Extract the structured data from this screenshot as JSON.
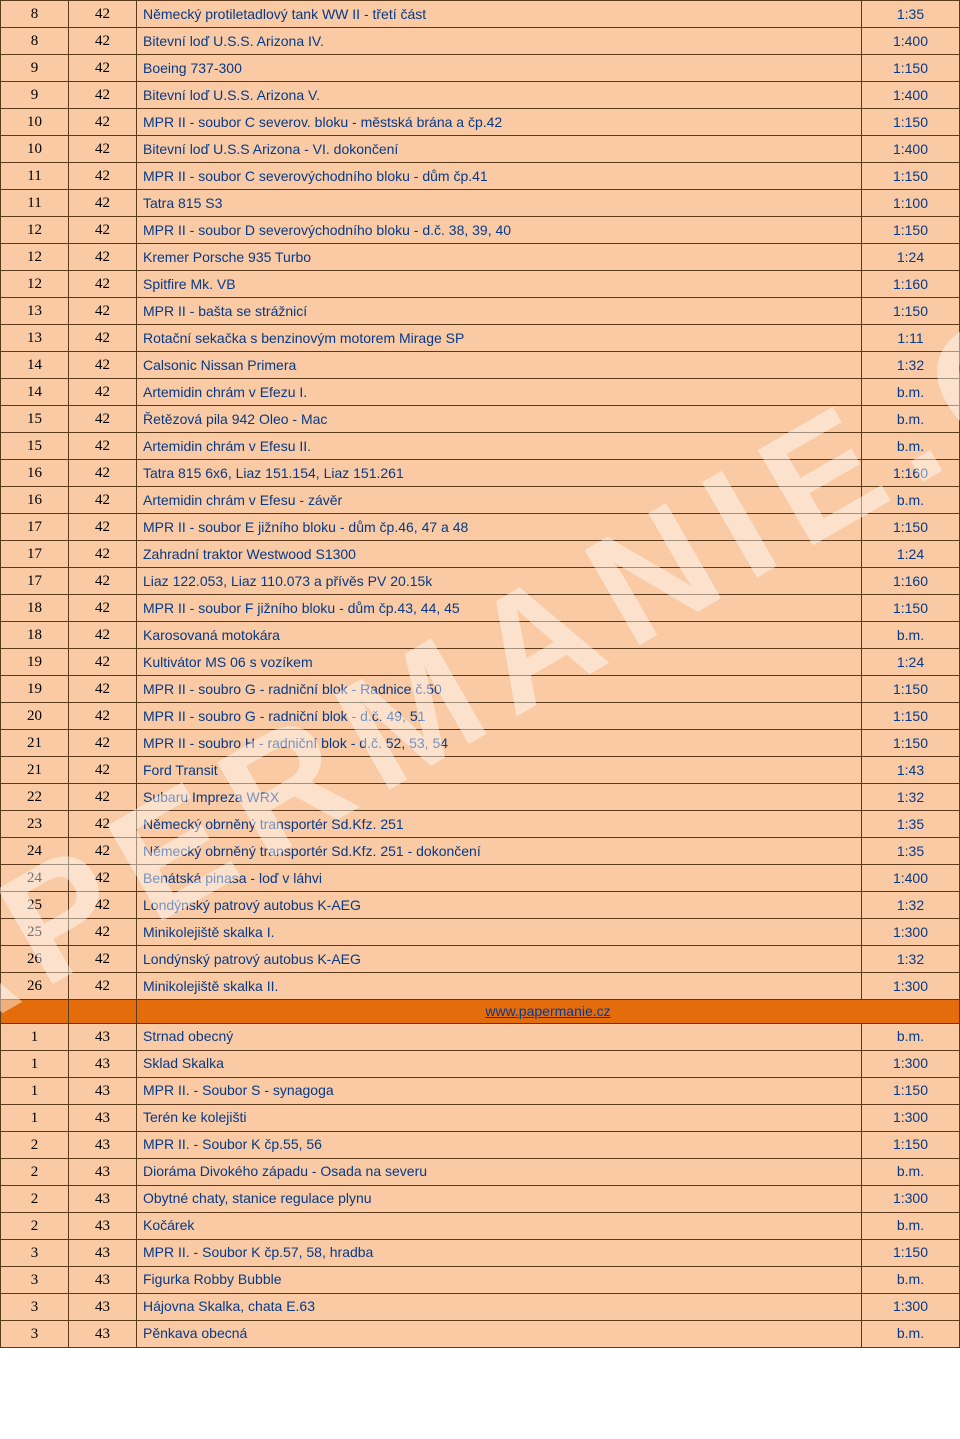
{
  "colors": {
    "row_bg": "#f9caa4",
    "sep_bg": "#e46c0a",
    "border": "#5a3a1a",
    "text_link": "#063a88",
    "col_ab": "#000000"
  },
  "watermark": "PAPERMANIE.CZ",
  "rows": [
    {
      "a": "8",
      "b": "42",
      "c": "Německý protiletadlový tank WW II - třetí část",
      "d": "1:35"
    },
    {
      "a": "8",
      "b": "42",
      "c": "Bitevní loď U.S.S. Arizona IV.",
      "d": "1:400"
    },
    {
      "a": "9",
      "b": "42",
      "c": "Boeing 737-300",
      "d": "1:150"
    },
    {
      "a": "9",
      "b": "42",
      "c": "Bitevní loď U.S.S. Arizona V.",
      "d": "1:400"
    },
    {
      "a": "10",
      "b": "42",
      "c": "MPR II - soubor C severov. bloku - městská brána a čp.42",
      "d": "1:150"
    },
    {
      "a": "10",
      "b": "42",
      "c": "Bitevní loď U.S.S Arizona - VI. dokončení",
      "d": "1:400"
    },
    {
      "a": "11",
      "b": "42",
      "c": "MPR II - soubor C severovýchodního bloku - dům čp.41",
      "d": "1:150"
    },
    {
      "a": "11",
      "b": "42",
      "c": "Tatra 815 S3",
      "d": "1:100"
    },
    {
      "a": "12",
      "b": "42",
      "c": "MPR II - soubor D severovýchodního bloku - d.č. 38, 39, 40",
      "d": "1:150"
    },
    {
      "a": "12",
      "b": "42",
      "c": "Kremer Porsche 935 Turbo",
      "d": "1:24"
    },
    {
      "a": "12",
      "b": "42",
      "c": "Spitfire Mk. VB",
      "d": "1:160"
    },
    {
      "a": "13",
      "b": "42",
      "c": "MPR II - bašta se strážnicí",
      "d": "1:150"
    },
    {
      "a": "13",
      "b": "42",
      "c": "Rotační sekačka s benzinovým motorem Mirage SP",
      "d": "1:11"
    },
    {
      "a": "14",
      "b": "42",
      "c": "Calsonic Nissan Primera",
      "d": "1:32"
    },
    {
      "a": "14",
      "b": "42",
      "c": "Artemidin chrám v Efezu I.",
      "d": "b.m."
    },
    {
      "a": "15",
      "b": "42",
      "c": "Řetězová pila 942 Oleo - Mac",
      "d": "b.m."
    },
    {
      "a": "15",
      "b": "42",
      "c": "Artemidin chrám v Efesu II.",
      "d": "b.m."
    },
    {
      "a": "16",
      "b": "42",
      "c": "Tatra 815 6x6, Liaz 151.154, Liaz 151.261",
      "d": "1:160"
    },
    {
      "a": "16",
      "b": "42",
      "c": "Artemidin chrám v Efesu - závěr",
      "d": "b.m."
    },
    {
      "a": "17",
      "b": "42",
      "c": "MPR II - soubor E jižního bloku - dům čp.46, 47 a 48",
      "d": "1:150"
    },
    {
      "a": "17",
      "b": "42",
      "c": "Zahradní traktor Westwood S1300",
      "d": "1:24"
    },
    {
      "a": "17",
      "b": "42",
      "c": "Liaz 122.053, Liaz 110.073 a přívěs PV 20.15k",
      "d": "1:160"
    },
    {
      "a": "18",
      "b": "42",
      "c": "MPR II - soubor F jižního bloku - dům čp.43, 44, 45",
      "d": "1:150"
    },
    {
      "a": "18",
      "b": "42",
      "c": "Karosovaná motokára",
      "d": "b.m."
    },
    {
      "a": "19",
      "b": "42",
      "c": "Kultivátor MS 06 s vozíkem",
      "d": "1:24"
    },
    {
      "a": "19",
      "b": "42",
      "c": "MPR II - soubro G - radniční blok - Radnice č.50",
      "d": "1:150"
    },
    {
      "a": "20",
      "b": "42",
      "c": "MPR II - soubro G - radniční blok - d.č. 49, 51",
      "d": "1:150"
    },
    {
      "a": "21",
      "b": "42",
      "c": "MPR II - soubro H - radniční blok - d.č. 52, 53, 54",
      "d": "1:150"
    },
    {
      "a": "21",
      "b": "42",
      "c": "Ford Transit",
      "d": "1:43"
    },
    {
      "a": "22",
      "b": "42",
      "c": "Subaru Impreza WRX",
      "d": "1:32"
    },
    {
      "a": "23",
      "b": "42",
      "c": "Německý obrněný transportér Sd.Kfz. 251",
      "d": "1:35"
    },
    {
      "a": "24",
      "b": "42",
      "c": "Německý obrněný transportér Sd.Kfz. 251 - dokončení",
      "d": "1:35"
    },
    {
      "a": "24",
      "b": "42",
      "c": "Benátská pinasa - loď v láhvi",
      "d": "1:400"
    },
    {
      "a": "25",
      "b": "42",
      "c": "Londýnský patrový autobus K-AEG",
      "d": "1:32"
    },
    {
      "a": "25",
      "b": "42",
      "c": "Minikolejiště skalka I.",
      "d": "1:300"
    },
    {
      "a": "26",
      "b": "42",
      "c": "Londýnský patrový autobus K-AEG",
      "d": "1:32"
    },
    {
      "a": "26",
      "b": "42",
      "c": "Minikolejiště skalka II.",
      "d": "1:300"
    }
  ],
  "separator": {
    "url_label": "www.papermanie.cz"
  },
  "rows2": [
    {
      "a": "1",
      "b": "43",
      "c": "Strnad obecný",
      "d": "b.m."
    },
    {
      "a": "1",
      "b": "43",
      "c": "Sklad Skalka",
      "d": "1:300"
    },
    {
      "a": "1",
      "b": "43",
      "c": "MPR II. - Soubor S - synagoga",
      "d": "1:150"
    },
    {
      "a": "1",
      "b": "43",
      "c": "Terén ke kolejišti",
      "d": "1:300"
    },
    {
      "a": "2",
      "b": "43",
      "c": "MPR II. - Soubor K čp.55, 56",
      "d": "1:150"
    },
    {
      "a": "2",
      "b": "43",
      "c": "Dioráma Divokého západu - Osada na severu",
      "d": "b.m."
    },
    {
      "a": "2",
      "b": "43",
      "c": "Obytné chaty, stanice regulace plynu",
      "d": "1:300"
    },
    {
      "a": "2",
      "b": "43",
      "c": "Kočárek",
      "d": "b.m."
    },
    {
      "a": "3",
      "b": "43",
      "c": "MPR II. - Soubor K čp.57, 58, hradba",
      "d": "1:150"
    },
    {
      "a": "3",
      "b": "43",
      "c": "Figurka Robby Bubble",
      "d": "b.m."
    },
    {
      "a": "3",
      "b": "43",
      "c": "Hájovna Skalka, chata E.63",
      "d": "1:300"
    },
    {
      "a": "3",
      "b": "43",
      "c": "Pěnkava obecná",
      "d": "b.m."
    }
  ]
}
